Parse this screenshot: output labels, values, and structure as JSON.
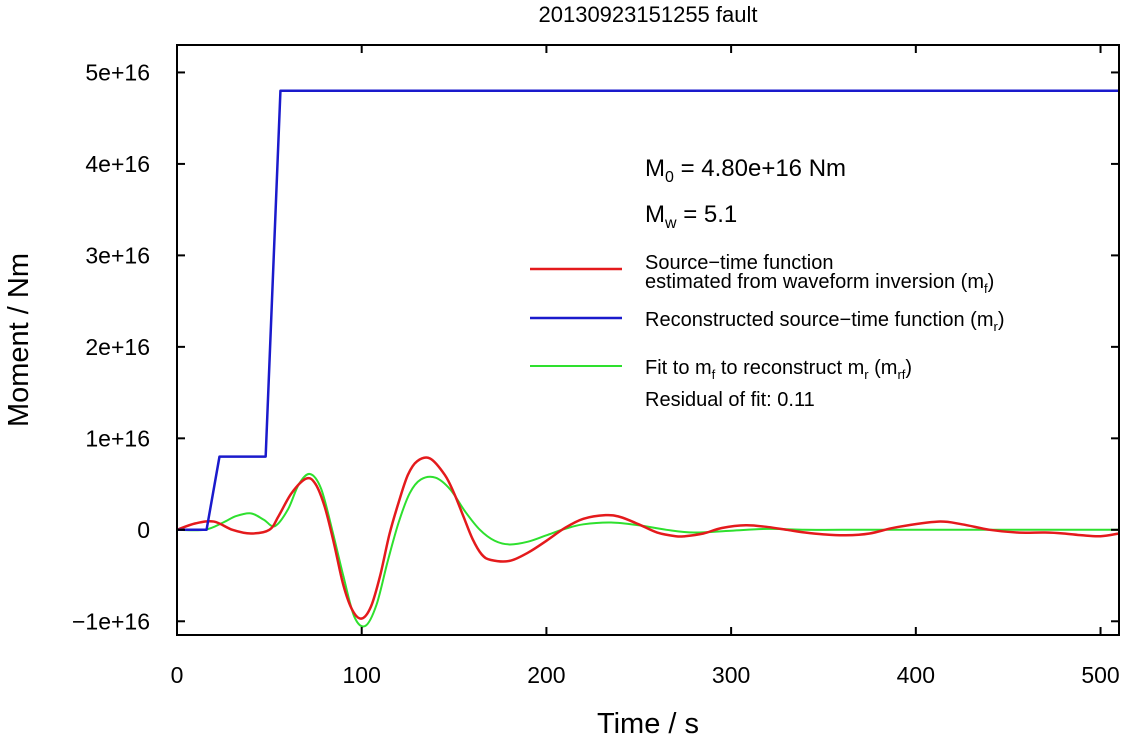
{
  "chart_data": {
    "type": "line",
    "title": "20130923151255 fault",
    "xlabel": "Time / s",
    "ylabel": "Moment / Nm",
    "xlim": [
      0,
      510
    ],
    "ylim": [
      -11500000000000000,
      53000000000000000
    ],
    "xticks": [
      0,
      100,
      200,
      300,
      400,
      500
    ],
    "xtick_labels": [
      "0",
      "100",
      "200",
      "300",
      "400",
      "500"
    ],
    "yticks": [
      -10000000000000000,
      0,
      10000000000000000,
      20000000000000000,
      30000000000000000,
      40000000000000000,
      50000000000000000
    ],
    "ytick_labels": [
      "−1e+16",
      "0",
      "1e+16",
      "2e+16",
      "3e+16",
      "4e+16",
      "5e+16"
    ],
    "grid": false,
    "legend_position": "right",
    "annotations": {
      "m0_base": "M",
      "m0_sub": "0",
      "m0_rest": " = 4.80e+16 Nm",
      "mw_base": "M",
      "mw_sub": "w",
      "mw_rest": " = 5.1",
      "residual": "Residual of fit: 0.11"
    },
    "legend": [
      {
        "color": "#e41a1c",
        "line1": "Source−time function",
        "line2_base": "estimated from waveform inversion (m",
        "line2_sub": "f",
        "line2_end": ")"
      },
      {
        "color": "#1a1acc",
        "line1_base": "Reconstructed source−time function (m",
        "line1_sub": "r",
        "line1_end": ")"
      },
      {
        "color": "#2ee02e",
        "line1_base": "Fit to m",
        "sub1": "f",
        "mid": " to reconstruct m",
        "sub2": "r",
        "open": " (m",
        "sub3": "rf",
        "line1_end": ")"
      }
    ],
    "series": [
      {
        "name": "Reconstructed source−time function (m_r)",
        "color": "#1a1acc",
        "x": [
          0,
          16,
          23,
          48,
          56,
          510
        ],
        "y": [
          0,
          0,
          8000000000000000,
          8000000000000000,
          48000000000000000,
          48000000000000000
        ]
      },
      {
        "name": "Source−time function estimated from waveform inversion (m_f)",
        "color": "#e41a1c",
        "x": [
          0,
          10,
          20,
          30,
          40,
          50,
          55,
          62,
          70,
          75,
          80,
          85,
          90,
          95,
          100,
          105,
          110,
          115,
          120,
          125,
          130,
          137,
          145,
          150,
          155,
          160,
          165,
          170,
          180,
          190,
          200,
          210,
          220,
          232,
          240,
          250,
          260,
          270,
          275,
          285,
          295,
          308,
          320,
          330,
          340,
          350,
          362,
          375,
          390,
          412,
          425,
          440,
          455,
          470,
          480,
          490,
          500,
          510
        ],
        "y": [
          0,
          700000000000000,
          900000000000000,
          0,
          -400000000000000,
          0,
          1500000000000000,
          4000000000000000,
          5600000000000000,
          5000000000000000,
          2500000000000000,
          -1500000000000000,
          -6000000000000000,
          -8800000000000000,
          -9700000000000000,
          -8400000000000000,
          -5000000000000000,
          -500000000000000,
          3000000000000000,
          6000000000000000,
          7500000000000000,
          7800000000000000,
          6000000000000000,
          4000000000000000,
          1500000000000000,
          -1000000000000000,
          -2700000000000000,
          -3300000000000000,
          -3400000000000000,
          -2500000000000000,
          -1200000000000000,
          200000000000000,
          1200000000000000,
          1600000000000000,
          1400000000000000,
          600000000000000,
          -300000000000000,
          -700000000000000,
          -700000000000000,
          -400000000000000,
          200000000000000,
          500000000000000,
          300000000000000,
          0,
          -300000000000000,
          -500000000000000,
          -600000000000000,
          -400000000000000,
          300000000000000,
          900000000000000,
          600000000000000,
          0,
          -300000000000000,
          -300000000000000,
          -400000000000000,
          -600000000000000,
          -700000000000000,
          -400000000000000
        ]
      },
      {
        "name": "Fit to m_f to reconstruct m_r (m_rf)",
        "color": "#2ee02e",
        "x": [
          0,
          15,
          25,
          32,
          40,
          47,
          53,
          60,
          66,
          72,
          78,
          84,
          90,
          96,
          102,
          108,
          114,
          120,
          126,
          132,
          140,
          148,
          156,
          164,
          172,
          180,
          190,
          200,
          210,
          220,
          235,
          250,
          265,
          280,
          300,
          320,
          340,
          360,
          400,
          450,
          510
        ],
        "y": [
          0,
          0,
          800000000000000,
          1500000000000000,
          1800000000000000,
          1100000000000000,
          400000000000000,
          2200000000000000,
          5000000000000000,
          6100000000000000,
          4500000000000000,
          0,
          -5000000000000000,
          -9500000000000000,
          -10500000000000000,
          -8200000000000000,
          -3500000000000000,
          800000000000000,
          4000000000000000,
          5500000000000000,
          5700000000000000,
          4400000000000000,
          2000000000000000,
          0,
          -1200000000000000,
          -1600000000000000,
          -1300000000000000,
          -600000000000000,
          100000000000000,
          600000000000000,
          800000000000000,
          500000000000000,
          0,
          -300000000000000,
          -100000000000000,
          100000000000000,
          0,
          0,
          0,
          0,
          0
        ]
      }
    ]
  }
}
